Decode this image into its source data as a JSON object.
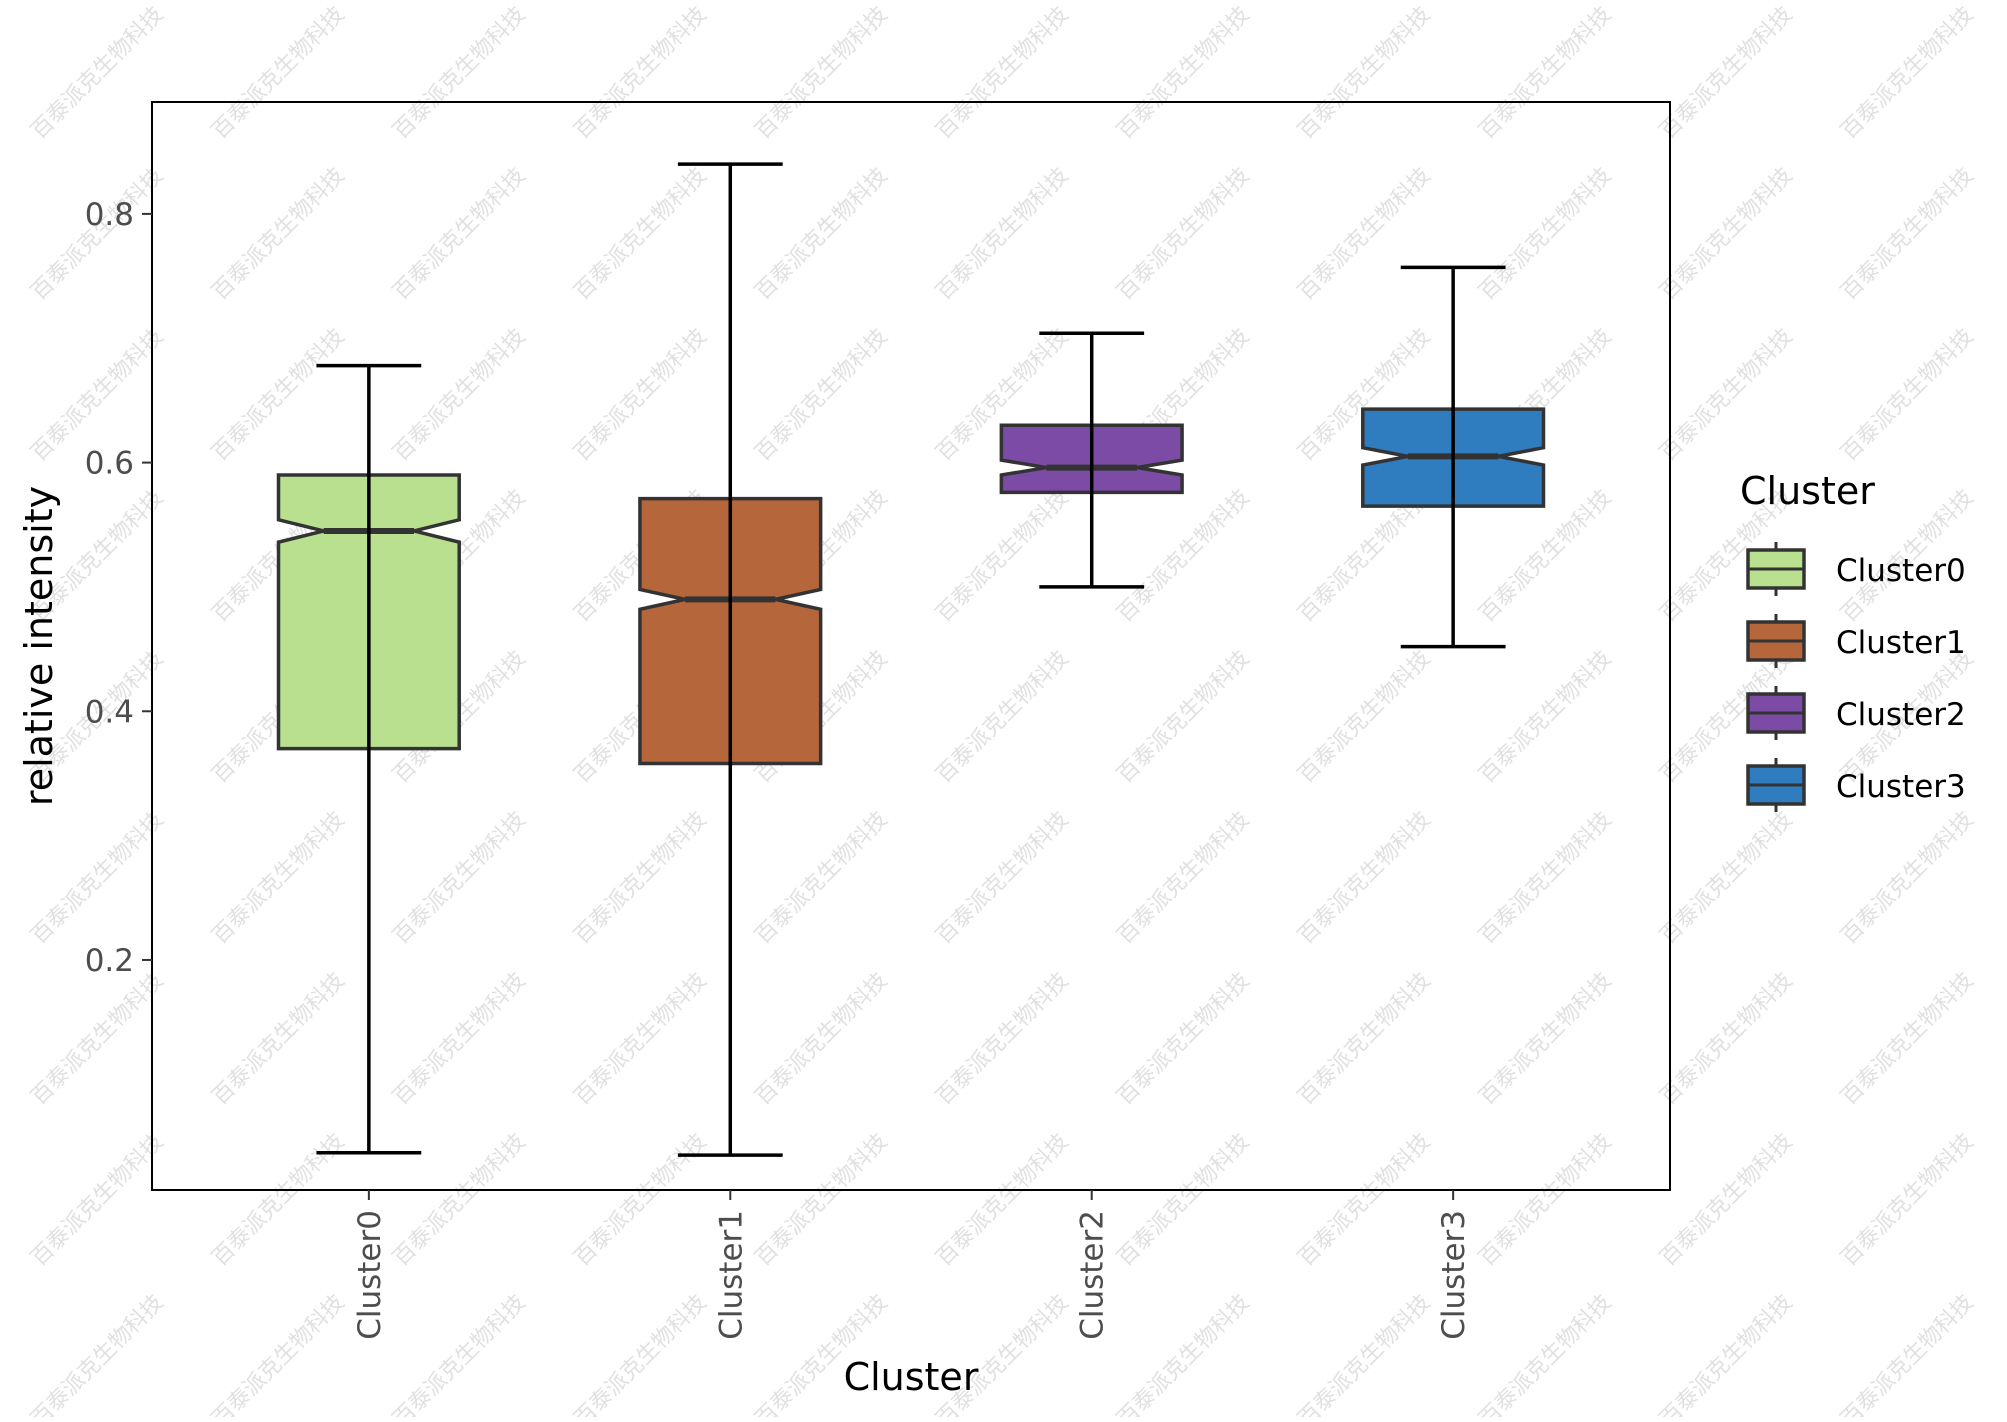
{
  "watermark_text": "百泰派克生物科技",
  "chart_data": {
    "type": "boxplot",
    "notched": true,
    "title": "",
    "xlabel": "Cluster",
    "ylabel": "relative intensity",
    "ylim": [
      0.015,
      0.89
    ],
    "yticks": [
      0.2,
      0.4,
      0.6,
      0.8
    ],
    "ytick_labels": [
      "0.2",
      "0.4",
      "0.6",
      "0.8"
    ],
    "grid": false,
    "legend": {
      "title": "Cluster",
      "position": "right"
    },
    "categories": [
      "Cluster0",
      "Cluster1",
      "Cluster2",
      "Cluster3"
    ],
    "series": [
      {
        "name": "Cluster0",
        "color": "#b8e08e",
        "whisker_low": 0.045,
        "q1": 0.37,
        "median": 0.545,
        "q3": 0.59,
        "whisker_high": 0.678,
        "notch_low": 0.536,
        "notch_high": 0.554
      },
      {
        "name": "Cluster1",
        "color": "#b5663b",
        "whisker_low": 0.043,
        "q1": 0.358,
        "median": 0.49,
        "q3": 0.571,
        "whisker_high": 0.84,
        "notch_low": 0.482,
        "notch_high": 0.498
      },
      {
        "name": "Cluster2",
        "color": "#7b4ba6",
        "whisker_low": 0.5,
        "q1": 0.576,
        "median": 0.596,
        "q3": 0.63,
        "whisker_high": 0.704,
        "notch_low": 0.59,
        "notch_high": 0.602
      },
      {
        "name": "Cluster3",
        "color": "#2f7dbf",
        "whisker_low": 0.452,
        "q1": 0.565,
        "median": 0.605,
        "q3": 0.643,
        "whisker_high": 0.757,
        "notch_low": 0.598,
        "notch_high": 0.612
      }
    ]
  }
}
